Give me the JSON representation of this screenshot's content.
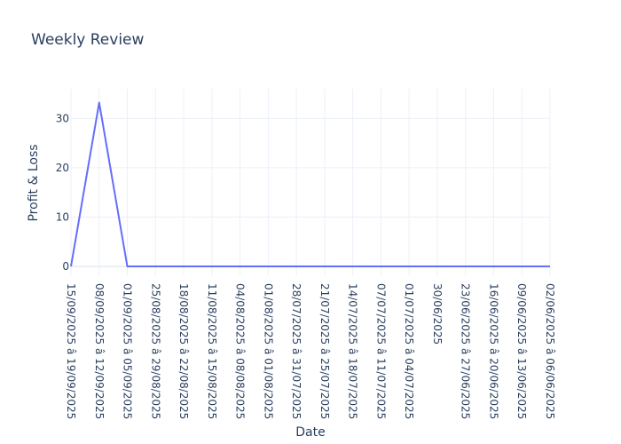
{
  "chart_data": {
    "type": "line",
    "title": "Weekly Review",
    "xlabel": "Date",
    "ylabel": "Profit & Loss",
    "grid": true,
    "legend": "none",
    "ylim": [
      -1.8,
      36
    ],
    "yticks": [
      0,
      10,
      20,
      30
    ],
    "categories": [
      "15/09/2025 â 19/09/2025",
      "08/09/2025 â 12/09/2025",
      "01/09/2025 â 05/09/2025",
      "25/08/2025 â 29/08/2025",
      "18/08/2025 â 22/08/2025",
      "11/08/2025 â 15/08/2025",
      "04/08/2025 â 08/08/2025",
      "01/08/2025 â 01/08/2025",
      "28/07/2025 â 31/07/2025",
      "21/07/2025 â 25/07/2025",
      "14/07/2025 â 18/07/2025",
      "07/07/2025 â 11/07/2025",
      "01/07/2025 â 04/07/2025",
      "30/06/2025",
      "23/06/2025 â 27/06/2025",
      "16/06/2025 â 20/06/2025",
      "09/06/2025 â 13/06/2025",
      "02/06/2025 â 06/06/2025"
    ],
    "series": [
      {
        "values": [
          0,
          33.2,
          0,
          0,
          0,
          0,
          0,
          0,
          0,
          0,
          0,
          0,
          0,
          0,
          0,
          0,
          0,
          0
        ]
      }
    ],
    "colors": {
      "line": "#636efa",
      "grid": "#ebf0f8",
      "text": "#2a3f5f"
    }
  }
}
